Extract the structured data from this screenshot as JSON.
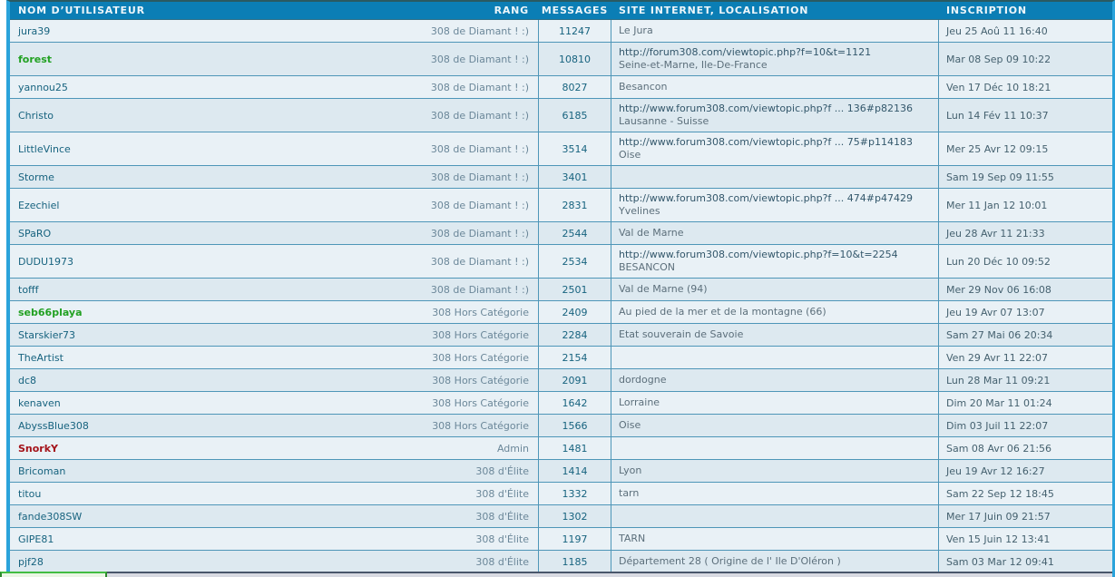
{
  "colors": {
    "header_bg": "#0b7eb5",
    "outer_border_blue": "#2aa3db",
    "row_light": "#e9f1f6",
    "row_alt": "#dde9f0",
    "row_separator": "#4e96b8",
    "username_default": "#17637f",
    "username_green": "#22a122",
    "username_red": "#a4131a",
    "bottom_chip_green": "#42bd42"
  },
  "table": {
    "headers": {
      "username": "NOM D’UTILISATEUR",
      "rank": "RANG",
      "messages": "MESSAGES",
      "site": "SITE INTERNET, LOCALISATION",
      "inscription": "INSCRIPTION"
    },
    "rows": [
      {
        "username": "jura39",
        "style": "",
        "rank": "308 de Diamant ! :)",
        "messages": "11247",
        "site": "",
        "location": "Le Jura",
        "date": "Jeu 25 Aoû 11 16:40"
      },
      {
        "username": "forest",
        "style": "green",
        "rank": "308 de Diamant ! :)",
        "messages": "10810",
        "site": "http://forum308.com/viewtopic.php?f=10&t=1121",
        "location": "Seine-et-Marne, Ile-De-France",
        "date": "Mar 08 Sep 09 10:22"
      },
      {
        "username": "yannou25",
        "style": "",
        "rank": "308 de Diamant ! :)",
        "messages": "8027",
        "site": "",
        "location": "Besancon",
        "date": "Ven 17 Déc 10 18:21"
      },
      {
        "username": "Christo",
        "style": "",
        "rank": "308 de Diamant ! :)",
        "messages": "6185",
        "site": "http://www.forum308.com/viewtopic.php?f ... 136#p82136",
        "location": "Lausanne - Suisse",
        "date": "Lun 14 Fév 11 10:37"
      },
      {
        "username": "LittleVince",
        "style": "",
        "rank": "308 de Diamant ! :)",
        "messages": "3514",
        "site": "http://www.forum308.com/viewtopic.php?f ... 75#p114183",
        "location": "Oise",
        "date": "Mer 25 Avr 12 09:15"
      },
      {
        "username": "Storme",
        "style": "",
        "rank": "308 de Diamant ! :)",
        "messages": "3401",
        "site": "",
        "location": "",
        "date": "Sam 19 Sep 09 11:55"
      },
      {
        "username": "Ezechiel",
        "style": "",
        "rank": "308 de Diamant ! :)",
        "messages": "2831",
        "site": "http://www.forum308.com/viewtopic.php?f ... 474#p47429",
        "location": "Yvelines",
        "date": "Mer 11 Jan 12 10:01"
      },
      {
        "username": "SPaRO",
        "style": "",
        "rank": "308 de Diamant ! :)",
        "messages": "2544",
        "site": "",
        "location": "Val de Marne",
        "date": "Jeu 28 Avr 11 21:33"
      },
      {
        "username": "DUDU1973",
        "style": "",
        "rank": "308 de Diamant ! :)",
        "messages": "2534",
        "site": "http://www.forum308.com/viewtopic.php?f=10&t=2254",
        "location": "BESANCON",
        "date": "Lun 20 Déc 10 09:52"
      },
      {
        "username": "tofff",
        "style": "",
        "rank": "308 de Diamant ! :)",
        "messages": "2501",
        "site": "",
        "location": "Val de Marne (94)",
        "date": "Mer 29 Nov 06 16:08"
      },
      {
        "username": "seb66playa",
        "style": "green",
        "rank": "308 Hors Catégorie",
        "messages": "2409",
        "site": "",
        "location": "Au pied de la mer et de la montagne (66)",
        "date": "Jeu 19 Avr 07 13:07"
      },
      {
        "username": "Starskier73",
        "style": "",
        "rank": "308 Hors Catégorie",
        "messages": "2284",
        "site": "",
        "location": "Etat souverain de Savoie",
        "date": "Sam 27 Mai 06 20:34"
      },
      {
        "username": "TheArtist",
        "style": "",
        "rank": "308 Hors Catégorie",
        "messages": "2154",
        "site": "",
        "location": "",
        "date": "Ven 29 Avr 11 22:07"
      },
      {
        "username": "dc8",
        "style": "",
        "rank": "308 Hors Catégorie",
        "messages": "2091",
        "site": "",
        "location": "dordogne",
        "date": "Lun 28 Mar 11 09:21"
      },
      {
        "username": "kenaven",
        "style": "",
        "rank": "308 Hors Catégorie",
        "messages": "1642",
        "site": "",
        "location": "Lorraine",
        "date": "Dim 20 Mar 11 01:24"
      },
      {
        "username": "AbyssBlue308",
        "style": "",
        "rank": "308 Hors Catégorie",
        "messages": "1566",
        "site": "",
        "location": "Oise",
        "date": "Dim 03 Juil 11 22:07"
      },
      {
        "username": "SnorkY",
        "style": "red",
        "rank": "Admin",
        "messages": "1481",
        "site": "",
        "location": "",
        "date": "Sam 08 Avr 06 21:56"
      },
      {
        "username": "Bricoman",
        "style": "",
        "rank": "308 d'Élite",
        "messages": "1414",
        "site": "",
        "location": "Lyon",
        "date": "Jeu 19 Avr 12 16:27"
      },
      {
        "username": "titou",
        "style": "",
        "rank": "308 d'Élite",
        "messages": "1332",
        "site": "",
        "location": "tarn",
        "date": "Sam 22 Sep 12 18:45"
      },
      {
        "username": "fande308SW",
        "style": "",
        "rank": "308 d'Élite",
        "messages": "1302",
        "site": "",
        "location": "",
        "date": "Mer 17 Juin 09 21:57"
      },
      {
        "username": "GIPE81",
        "style": "",
        "rank": "308 d'Élite",
        "messages": "1197",
        "site": "",
        "location": "TARN",
        "date": "Ven 15 Juin 12 13:41"
      },
      {
        "username": "pjf28",
        "style": "",
        "rank": "308 d'Élite",
        "messages": "1185",
        "site": "",
        "location": "Département 28 ( Origine de l' Ile D'Oléron )",
        "date": "Sam 03 Mar 12 09:41"
      }
    ]
  }
}
